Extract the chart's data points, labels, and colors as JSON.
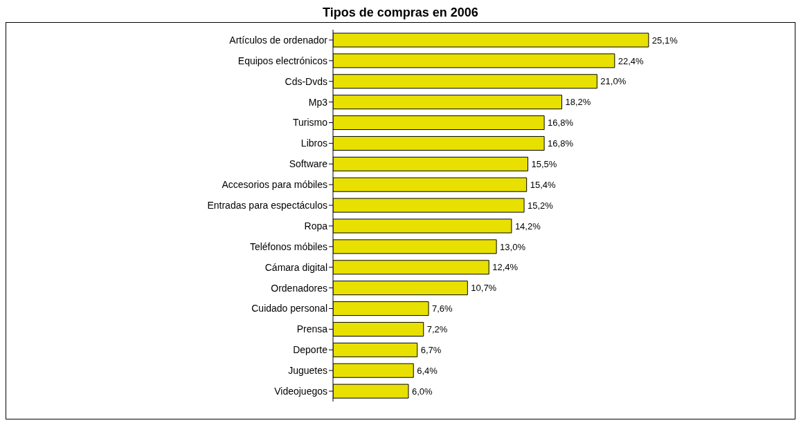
{
  "chart_data": {
    "type": "bar",
    "orientation": "horizontal",
    "title": "Tipos de compras en 2006",
    "categories": [
      "Artículos de ordenador",
      "Equipos electrónicos",
      "Cds-Dvds",
      "Mp3",
      "Turismo",
      "Libros",
      "Software",
      "Accesorios para móbiles",
      "Entradas para espectáculos",
      "Ropa",
      "Teléfonos móbiles",
      "Cámara digital",
      "Ordenadores",
      "Cuidado personal",
      "Prensa",
      "Deporte",
      "Juguetes",
      "Videojuegos"
    ],
    "values": [
      25.1,
      22.4,
      21.0,
      18.2,
      16.8,
      16.8,
      15.5,
      15.4,
      15.2,
      14.2,
      13.0,
      12.4,
      10.7,
      7.6,
      7.2,
      6.7,
      6.4,
      6.0
    ],
    "value_labels": [
      "25,1%",
      "22,4%",
      "21,0%",
      "18,2%",
      "16,8%",
      "16,8%",
      "15,5%",
      "15,4%",
      "15,2%",
      "14,2%",
      "13,0%",
      "12,4%",
      "10,7%",
      "7,6%",
      "7,2%",
      "6,7%",
      "6,4%",
      "6,0%"
    ],
    "color": "#e8e000",
    "legend": false,
    "grid": false
  }
}
